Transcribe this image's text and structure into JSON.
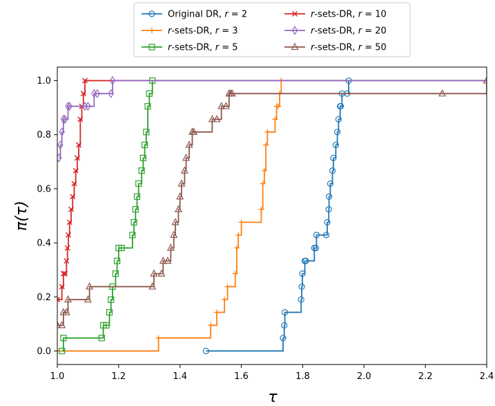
{
  "chart_data": {
    "type": "line",
    "title": "",
    "xlabel": "τ",
    "ylabel": "π(τ)",
    "xlim": [
      1.0,
      2.4
    ],
    "ylim": [
      -0.05,
      1.05
    ],
    "xticks": [
      "1.0",
      "1.2",
      "1.4",
      "1.6",
      "1.8",
      "2.0",
      "2.2",
      "2.4"
    ],
    "yticks": [
      "0.0",
      "0.2",
      "0.4",
      "0.6",
      "0.8",
      "1.0"
    ],
    "xtick_values": [
      1.0,
      1.2,
      1.4,
      1.6,
      1.8,
      2.0,
      2.2,
      2.4
    ],
    "ytick_values": [
      0.0,
      0.2,
      0.4,
      0.6,
      0.8,
      1.0
    ],
    "grid": false,
    "legend_position": "top-center, outside plot",
    "series": [
      {
        "name": "Original DR, r = 2",
        "legend_prefix": "Original DR, ",
        "legend_suffix": "= 2",
        "color": "#1f77b4",
        "marker": "circle",
        "x": [
          1.485,
          1.736,
          1.74,
          1.742,
          1.795,
          1.797,
          1.799,
          1.807,
          1.81,
          1.838,
          1.843,
          1.845,
          1.877,
          1.88,
          1.885,
          1.886,
          1.89,
          1.897,
          1.9,
          1.908,
          1.913,
          1.917,
          1.922,
          1.924,
          1.928,
          1.945,
          1.95
        ],
        "y": [
          0.0,
          0.048,
          0.095,
          0.143,
          0.19,
          0.238,
          0.286,
          0.333,
          0.333,
          0.381,
          0.381,
          0.429,
          0.429,
          0.476,
          0.524,
          0.571,
          0.619,
          0.667,
          0.714,
          0.762,
          0.81,
          0.857,
          0.905,
          0.905,
          0.952,
          0.952,
          1.0
        ]
      },
      {
        "name": "r-sets-DR, r = 3",
        "legend_prefix": "",
        "legend_suffix": "-sets-DR, ",
        "legend_tail": "= 3",
        "color": "#ff7f0e",
        "marker": "plus",
        "x": [
          1.0,
          1.33,
          1.5,
          1.52,
          1.545,
          1.555,
          1.58,
          1.585,
          1.59,
          1.6,
          1.665,
          1.67,
          1.675,
          1.68,
          1.685,
          1.71,
          1.715,
          1.72,
          1.725,
          1.73
        ],
        "y": [
          0.0,
          0.048,
          0.095,
          0.143,
          0.19,
          0.238,
          0.286,
          0.381,
          0.429,
          0.476,
          0.524,
          0.619,
          0.667,
          0.762,
          0.81,
          0.857,
          0.905,
          0.905,
          0.952,
          1.0
        ]
      },
      {
        "name": "r-sets-DR, r = 5",
        "legend_suffix": "= 5",
        "color": "#2ca02c",
        "marker": "square",
        "x": [
          1.015,
          1.02,
          1.145,
          1.15,
          1.16,
          1.17,
          1.175,
          1.18,
          1.19,
          1.195,
          1.2,
          1.21,
          1.245,
          1.25,
          1.255,
          1.26,
          1.265,
          1.275,
          1.28,
          1.285,
          1.29,
          1.295,
          1.3,
          1.31
        ],
        "y": [
          0.0,
          0.048,
          0.048,
          0.095,
          0.095,
          0.143,
          0.19,
          0.238,
          0.286,
          0.333,
          0.381,
          0.381,
          0.429,
          0.476,
          0.524,
          0.571,
          0.619,
          0.667,
          0.714,
          0.762,
          0.81,
          0.905,
          0.952,
          1.0
        ]
      },
      {
        "name": "r-sets-DR, r = 10",
        "legend_suffix": "= 10",
        "color": "#d62728",
        "marker": "x",
        "x": [
          1.0,
          1.015,
          1.02,
          1.025,
          1.03,
          1.033,
          1.036,
          1.04,
          1.045,
          1.05,
          1.055,
          1.06,
          1.065,
          1.07,
          1.075,
          1.08,
          1.085,
          1.09
        ],
        "y": [
          0.19,
          0.238,
          0.286,
          0.286,
          0.333,
          0.381,
          0.429,
          0.476,
          0.524,
          0.571,
          0.619,
          0.667,
          0.714,
          0.762,
          0.857,
          0.905,
          0.952,
          1.0
        ]
      },
      {
        "name": "r-sets-DR, r = 20",
        "legend_suffix": "= 20",
        "color": "#9467bd",
        "marker": "diamond",
        "x": [
          1.005,
          1.01,
          1.015,
          1.02,
          1.025,
          1.035,
          1.04,
          1.09,
          1.1,
          1.12,
          1.13,
          1.175,
          1.18
        ],
        "y": [
          0.714,
          0.762,
          0.81,
          0.857,
          0.857,
          0.905,
          0.905,
          0.905,
          0.905,
          0.952,
          0.952,
          0.952,
          1.0
        ]
      },
      {
        "name": "r-sets-DR, r = 50",
        "legend_suffix": "= 50",
        "color": "#8c564b",
        "marker": "triangle",
        "x": [
          1.0,
          1.015,
          1.02,
          1.03,
          1.035,
          1.1,
          1.105,
          1.31,
          1.315,
          1.34,
          1.345,
          1.36,
          1.37,
          1.38,
          1.385,
          1.395,
          1.4,
          1.405,
          1.415,
          1.42,
          1.43,
          1.44,
          1.445,
          1.505,
          1.52,
          1.535,
          1.55,
          1.56,
          1.565,
          1.57,
          2.255,
          2.4
        ],
        "y": [
          0.095,
          0.095,
          0.143,
          0.143,
          0.19,
          0.19,
          0.238,
          0.238,
          0.286,
          0.286,
          0.333,
          0.333,
          0.381,
          0.429,
          0.476,
          0.524,
          0.571,
          0.619,
          0.667,
          0.714,
          0.762,
          0.81,
          0.81,
          0.857,
          0.857,
          0.905,
          0.905,
          0.952,
          0.952,
          0.952,
          0.952,
          1.0
        ]
      }
    ]
  },
  "legend": {
    "entries": [
      {
        "prefix": "Original DR, ",
        "var": "r",
        "suffix": " = 2"
      },
      {
        "prefix": "",
        "var": "r",
        "suffix": "-sets-DR, ",
        "var2": "r",
        "suffix2": " = 3"
      },
      {
        "prefix": "",
        "var": "r",
        "suffix": "-sets-DR, ",
        "var2": "r",
        "suffix2": " = 5"
      },
      {
        "prefix": "",
        "var": "r",
        "suffix": "-sets-DR, ",
        "var2": "r",
        "suffix2": " = 10"
      },
      {
        "prefix": "",
        "var": "r",
        "suffix": "-sets-DR, ",
        "var2": "r",
        "suffix2": " = 20"
      },
      {
        "prefix": "",
        "var": "r",
        "suffix": "-sets-DR, ",
        "var2": "r",
        "suffix2": " = 50"
      }
    ]
  }
}
